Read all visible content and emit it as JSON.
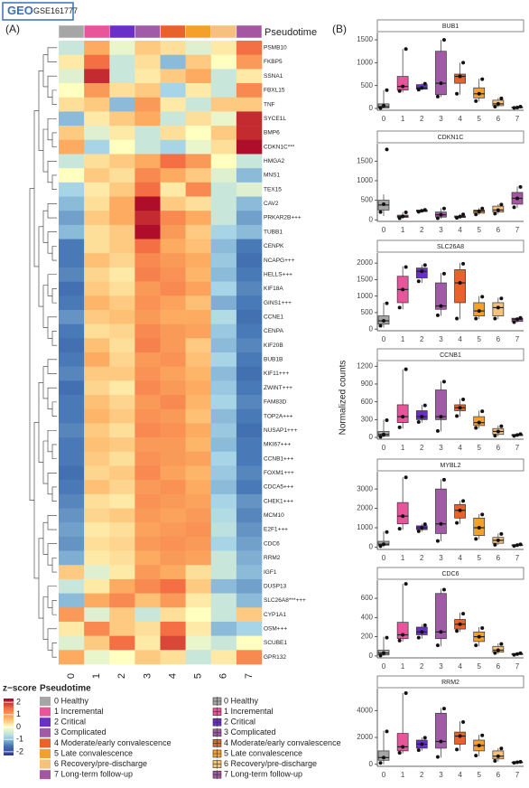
{
  "header": {
    "badge": "GSE161777"
  },
  "panel_labels": [
    "(A)",
    "(B)"
  ],
  "y_axis_label": "Normalized counts",
  "chart_data": [
    {
      "type": "heatmap",
      "column_title": "Pseudotime",
      "categories": [
        "0",
        "1",
        "2",
        "3",
        "4",
        "5",
        "6",
        "7"
      ],
      "group_names": [
        "0 Healthy",
        "1 Incremental",
        "2 Critical",
        "3 Complicated",
        "4 Moderate/early convalescence",
        "5 Late convalescence",
        "6 Recovery/pre-discharge",
        "7 Long-term follow-up"
      ],
      "group_colors": [
        "#a6a6a6",
        "#e8559b",
        "#6a2fc8",
        "#a15aa8",
        "#e8632b",
        "#f6a02c",
        "#f6c07d",
        "#a556a3"
      ],
      "rows": [
        "PSMB10",
        "FKBP5",
        "SSNA1",
        "FBXL15",
        "TNF",
        "SYCE1L",
        "BMP6",
        "CDKN1C***",
        "HMGA2",
        "MNS1",
        "TEX15",
        "CAV2",
        "PRKAR2B+++",
        "TUBB1",
        "CENPK",
        "NCAPG+++",
        "HELLS+++",
        "KIF18A",
        "GINS1+++",
        "CCNE1",
        "CENPA",
        "KIF20B",
        "BUB1B",
        "KIF11+++",
        "ZWINT+++",
        "FAM83D",
        "TOP2A+++",
        "NUSAP1+++",
        "MKI67+++",
        "CCNB1+++",
        "FOXM1+++",
        "CDCA5+++",
        "CHEK1+++",
        "MCM10",
        "E2F1+++",
        "CDC6",
        "RRM2",
        "IGF1",
        "DUSP13",
        "SLC26A8***+++",
        "CYP1A1",
        "OSM+++",
        "SCUBE1",
        "GPR132"
      ],
      "values": [
        [
          -0.5,
          0.8,
          -0.2,
          0.5,
          0.3,
          -0.3,
          0.2,
          1.5
        ],
        [
          0.2,
          1.5,
          -0.5,
          0.3,
          -1,
          0.5,
          0,
          1
        ],
        [
          -0.3,
          2,
          -0.5,
          0.2,
          0.5,
          0.8,
          -0.5,
          0.2
        ],
        [
          0,
          1,
          0.3,
          0.5,
          -0.8,
          0.2,
          -0.5,
          1.2
        ],
        [
          0.3,
          0.5,
          -1,
          1,
          0.2,
          -0.5,
          0.5,
          0.5
        ],
        [
          -1,
          0.2,
          0.5,
          0.8,
          -0.5,
          0.3,
          -0.2,
          2
        ],
        [
          0.5,
          -0.3,
          0.2,
          -0.5,
          0.3,
          0,
          0.5,
          2
        ],
        [
          0.8,
          -0.8,
          0,
          -0.5,
          -0.8,
          -0.2,
          0.3,
          2.2
        ],
        [
          -0.5,
          0.3,
          0.5,
          0.8,
          1.5,
          1,
          0,
          -0.5
        ],
        [
          0,
          0.5,
          0.3,
          1.2,
          0.8,
          0.5,
          -0.3,
          -1
        ],
        [
          -0.8,
          0.2,
          0.5,
          1.5,
          0.2,
          1.2,
          -0.5,
          -0.3
        ],
        [
          -1,
          0.3,
          0.8,
          2.2,
          0.5,
          0.3,
          -0.5,
          -1
        ],
        [
          -1.2,
          0.5,
          0.8,
          2,
          1.2,
          0.8,
          -0.5,
          -1.2
        ],
        [
          -1,
          0.3,
          0.5,
          2.2,
          1,
          0.5,
          -0.8,
          -1
        ],
        [
          -1.5,
          0.3,
          0.5,
          1.5,
          0.8,
          0.6,
          -1,
          -1.5
        ],
        [
          -1.5,
          0.6,
          0.4,
          1.2,
          1,
          0.8,
          -0.9,
          -1.6
        ],
        [
          -1.4,
          0.4,
          0.2,
          1.3,
          1.1,
          0.7,
          -1,
          -1.5
        ],
        [
          -1.6,
          0.5,
          0.3,
          1,
          1.2,
          0.9,
          -0.8,
          -1.4
        ],
        [
          -1.5,
          0.7,
          0.5,
          1.1,
          0.9,
          0.6,
          -1.1,
          -1.5
        ],
        [
          -1.3,
          0.5,
          0.6,
          1,
          0.8,
          0.8,
          -0.7,
          -1.6
        ],
        [
          -1.5,
          0.3,
          0.4,
          1.2,
          1,
          0.9,
          -0.9,
          -1.5
        ],
        [
          -1.6,
          0.6,
          0.3,
          1.3,
          1,
          0.5,
          -1,
          -1.4
        ],
        [
          -1.5,
          0.8,
          0.4,
          1,
          1.1,
          0.6,
          -0.8,
          -1.5
        ],
        [
          -1.4,
          0.5,
          0.5,
          1.1,
          0.9,
          0.7,
          -1,
          -1.6
        ],
        [
          -1.6,
          0.4,
          0.2,
          1.2,
          1,
          0.8,
          -0.9,
          -1.5
        ],
        [
          -1.5,
          0.6,
          0.4,
          1,
          1.2,
          0.7,
          -0.8,
          -1.4
        ],
        [
          -1.5,
          0.7,
          0.5,
          1.1,
          1,
          0.6,
          -1,
          -1.5
        ],
        [
          -1.4,
          0.5,
          0.3,
          1.2,
          1.1,
          0.8,
          -0.9,
          -1.6
        ],
        [
          -1.5,
          0.6,
          0.5,
          1,
          1,
          0.7,
          -1,
          -1.5
        ],
        [
          -1.5,
          0.5,
          0.3,
          1.1,
          1,
          0.9,
          -0.8,
          -1.5
        ],
        [
          -1.6,
          0.4,
          0.5,
          1.2,
          0.9,
          0.7,
          -0.9,
          -1.4
        ],
        [
          -1.5,
          0.6,
          0.4,
          1,
          1.1,
          0.8,
          -1,
          -1.5
        ],
        [
          -1.4,
          0.3,
          0.2,
          1.1,
          1,
          0.9,
          -0.8,
          -1.3
        ],
        [
          -1.3,
          0.4,
          0.5,
          1,
          0.9,
          1,
          -0.7,
          -1.4
        ],
        [
          -1.2,
          0.2,
          0.3,
          0.9,
          1,
          1.1,
          -0.6,
          -1.3
        ],
        [
          -1.3,
          0.3,
          0.4,
          1,
          1.1,
          1,
          -0.8,
          -1.2
        ],
        [
          -1.1,
          0.2,
          0.3,
          0.8,
          1,
          0.9,
          -0.5,
          -1.1
        ],
        [
          0.5,
          -0.3,
          0.2,
          1,
          0.8,
          0.3,
          -0.5,
          -1
        ],
        [
          -0.5,
          0.2,
          0.8,
          1.2,
          1.5,
          0.5,
          -1,
          -1.2
        ],
        [
          -1,
          0.8,
          1.2,
          0.6,
          1,
          0.2,
          -0.5,
          -1
        ],
        [
          1,
          -0.3,
          0.5,
          -0.5,
          0.3,
          0,
          -0.5,
          0.5
        ],
        [
          0.2,
          1.2,
          0.5,
          0.3,
          1.5,
          0.2,
          -1,
          -0.8
        ],
        [
          -0.3,
          0.5,
          1.5,
          0.2,
          1.8,
          -0.2,
          -0.5,
          0
        ],
        [
          0.8,
          -0.2,
          0,
          0.5,
          0.3,
          -0.5,
          0.2,
          1.2
        ]
      ],
      "zlim": [
        -2.3,
        2.3
      ],
      "colorscale": [
        "#313695",
        "#4575b4",
        "#abd9e9",
        "#ffffbf",
        "#fdae61",
        "#f46d43",
        "#a50026"
      ],
      "colorbar_title": "z−score",
      "colorbar_ticks": [
        2,
        1,
        0,
        -1,
        -2
      ],
      "legend_title": "Pseudotime"
    },
    {
      "type": "box",
      "title": "BUB1",
      "categories": [
        "0",
        "1",
        "2",
        "3",
        "4",
        "5",
        "6",
        "7"
      ],
      "ylim": [
        -40,
        1620
      ],
      "yticks": [
        0,
        500,
        1000,
        1500
      ],
      "min": [
        0,
        350,
        400,
        250,
        300,
        150,
        30,
        10
      ],
      "q1": [
        10,
        400,
        420,
        300,
        550,
        230,
        60,
        15
      ],
      "median": [
        40,
        480,
        450,
        550,
        700,
        320,
        100,
        20
      ],
      "q3": [
        100,
        700,
        520,
        1250,
        750,
        450,
        180,
        30
      ],
      "max": [
        400,
        1300,
        550,
        1500,
        1000,
        650,
        230,
        40
      ],
      "points": [
        [
          10,
          60,
          400
        ],
        [
          380,
          480,
          1300
        ],
        [
          410,
          450,
          540
        ],
        [
          260,
          550,
          1500
        ],
        [
          320,
          700,
          1000
        ],
        [
          160,
          320,
          640
        ],
        [
          40,
          100,
          220
        ],
        [
          12,
          20,
          38
        ]
      ]
    },
    {
      "type": "box",
      "title": "CDKN1C",
      "categories": [
        "0",
        "1",
        "2",
        "3",
        "4",
        "5",
        "6",
        "7"
      ],
      "ylim": [
        -40,
        1900
      ],
      "yticks": [
        0,
        500,
        1000,
        1500
      ],
      "min": [
        100,
        30,
        200,
        30,
        40,
        130,
        150,
        300
      ],
      "q1": [
        250,
        60,
        210,
        70,
        60,
        170,
        200,
        400
      ],
      "median": [
        380,
        90,
        230,
        130,
        80,
        220,
        250,
        550
      ],
      "q3": [
        500,
        120,
        250,
        200,
        100,
        250,
        350,
        700
      ],
      "max": [
        650,
        200,
        260,
        300,
        150,
        300,
        400,
        850
      ],
      "points": [
        [
          200,
          400,
          1800
        ],
        [
          40,
          90,
          190
        ],
        [
          205,
          230,
          255
        ],
        [
          40,
          130,
          290
        ],
        [
          50,
          80,
          140
        ],
        [
          140,
          220,
          290
        ],
        [
          160,
          250,
          390
        ],
        [
          320,
          550,
          840
        ]
      ]
    },
    {
      "type": "box",
      "title": "SLC26A8",
      "categories": [
        "0",
        "1",
        "2",
        "3",
        "4",
        "5",
        "6",
        "7"
      ],
      "ylim": [
        -50,
        2250
      ],
      "yticks": [
        0,
        500,
        1000,
        1500,
        2000
      ],
      "min": [
        50,
        600,
        1400,
        400,
        300,
        300,
        300,
        200
      ],
      "q1": [
        150,
        800,
        1550,
        600,
        800,
        400,
        400,
        230
      ],
      "median": [
        250,
        1200,
        1750,
        700,
        1400,
        550,
        650,
        300
      ],
      "q3": [
        400,
        1600,
        1850,
        1400,
        1800,
        800,
        800,
        330
      ],
      "max": [
        800,
        1900,
        1950,
        1700,
        2000,
        1000,
        950,
        350
      ],
      "points": [
        [
          100,
          250,
          780
        ],
        [
          650,
          1200,
          1880
        ],
        [
          1450,
          1750,
          1940
        ],
        [
          420,
          700,
          1680
        ],
        [
          320,
          1400,
          1980
        ],
        [
          320,
          550,
          980
        ],
        [
          320,
          650,
          930
        ],
        [
          210,
          300,
          340
        ]
      ]
    },
    {
      "type": "box",
      "title": "CCNB1",
      "categories": [
        "0",
        "1",
        "2",
        "3",
        "4",
        "5",
        "6",
        "7"
      ],
      "ylim": [
        -30,
        1250
      ],
      "yticks": [
        0,
        300,
        600,
        900,
        1200
      ],
      "min": [
        0,
        150,
        250,
        100,
        350,
        150,
        20,
        20
      ],
      "q1": [
        20,
        250,
        300,
        300,
        450,
        200,
        50,
        30
      ],
      "median": [
        50,
        350,
        350,
        350,
        500,
        250,
        100,
        40
      ],
      "q3": [
        100,
        550,
        450,
        800,
        550,
        350,
        150,
        50
      ],
      "max": [
        300,
        1150,
        550,
        950,
        650,
        450,
        200,
        60
      ],
      "points": [
        [
          10,
          50,
          290
        ],
        [
          170,
          350,
          1150
        ],
        [
          260,
          350,
          540
        ],
        [
          110,
          350,
          940
        ],
        [
          360,
          500,
          640
        ],
        [
          160,
          250,
          440
        ],
        [
          30,
          100,
          190
        ],
        [
          25,
          40,
          55
        ]
      ]
    },
    {
      "type": "box",
      "title": "MYBL2",
      "categories": [
        "0",
        "1",
        "2",
        "3",
        "4",
        "5",
        "6",
        "7"
      ],
      "ylim": [
        -120,
        3800
      ],
      "yticks": [
        0,
        1000,
        2000,
        3000
      ],
      "min": [
        0,
        900,
        800,
        300,
        1200,
        400,
        100,
        50
      ],
      "q1": [
        100,
        1200,
        900,
        700,
        1500,
        600,
        200,
        80
      ],
      "median": [
        150,
        1600,
        1000,
        1200,
        1900,
        1000,
        350,
        100
      ],
      "q3": [
        300,
        2300,
        1100,
        3000,
        2200,
        1500,
        500,
        120
      ],
      "max": [
        800,
        3600,
        1200,
        3500,
        2400,
        1700,
        700,
        150
      ],
      "points": [
        [
          50,
          150,
          780
        ],
        [
          950,
          1600,
          3600
        ],
        [
          820,
          1000,
          1180
        ],
        [
          320,
          1200,
          3480
        ],
        [
          1250,
          1900,
          2380
        ],
        [
          420,
          1000,
          1680
        ],
        [
          120,
          350,
          680
        ],
        [
          60,
          100,
          140
        ]
      ]
    },
    {
      "type": "box",
      "title": "CDC6",
      "categories": [
        "0",
        "1",
        "2",
        "3",
        "4",
        "5",
        "6",
        "7"
      ],
      "ylim": [
        -20,
        770
      ],
      "yticks": [
        0,
        200,
        400,
        600
      ],
      "min": [
        0,
        150,
        180,
        100,
        250,
        100,
        20,
        10
      ],
      "q1": [
        10,
        180,
        220,
        180,
        280,
        150,
        40,
        15
      ],
      "median": [
        30,
        220,
        250,
        250,
        330,
        200,
        60,
        20
      ],
      "q3": [
        60,
        350,
        300,
        650,
        380,
        250,
        100,
        25
      ],
      "max": [
        200,
        750,
        330,
        700,
        450,
        300,
        130,
        30
      ],
      "points": [
        [
          5,
          30,
          190
        ],
        [
          160,
          220,
          750
        ],
        [
          190,
          250,
          320
        ],
        [
          110,
          250,
          690
        ],
        [
          260,
          330,
          440
        ],
        [
          110,
          200,
          290
        ],
        [
          30,
          60,
          125
        ],
        [
          12,
          20,
          28
        ]
      ]
    },
    {
      "type": "box",
      "title": "RRM2",
      "categories": [
        "0",
        "1",
        "2",
        "3",
        "4",
        "5",
        "6",
        "7"
      ],
      "ylim": [
        -150,
        5500
      ],
      "yticks": [
        0,
        2000,
        4000
      ],
      "min": [
        0,
        800,
        1000,
        500,
        1000,
        600,
        200,
        100
      ],
      "q1": [
        300,
        1000,
        1200,
        1200,
        1500,
        1000,
        400,
        120
      ],
      "median": [
        500,
        1300,
        1500,
        1700,
        2100,
        1400,
        600,
        150
      ],
      "q3": [
        1000,
        2300,
        1800,
        3800,
        2400,
        1800,
        1000,
        170
      ],
      "max": [
        2500,
        5300,
        2000,
        4200,
        3200,
        2200,
        1200,
        200
      ],
      "points": [
        [
          100,
          500,
          2450
        ],
        [
          850,
          1300,
          5300
        ],
        [
          1050,
          1500,
          1980
        ],
        [
          550,
          1700,
          4150
        ],
        [
          1100,
          2100,
          3150
        ],
        [
          650,
          1400,
          2150
        ],
        [
          250,
          600,
          1180
        ],
        [
          110,
          150,
          190
        ]
      ]
    }
  ]
}
